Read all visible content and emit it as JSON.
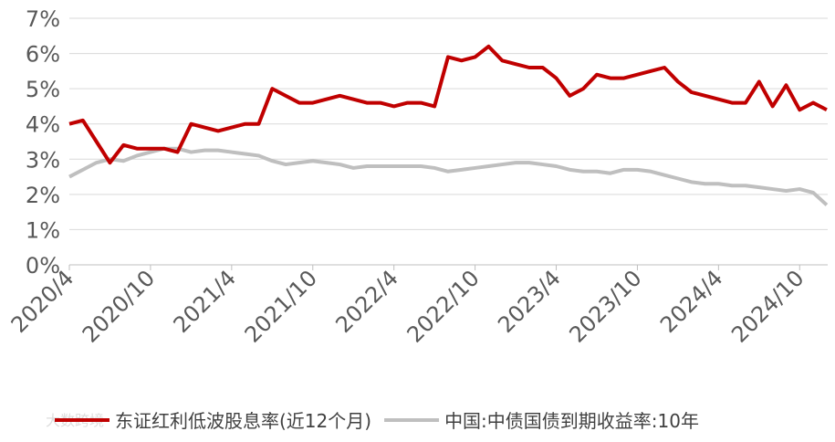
{
  "chart_data": {
    "type": "line",
    "x": [
      "2020/4",
      "2020/5",
      "2020/6",
      "2020/7",
      "2020/8",
      "2020/9",
      "2020/10",
      "2020/11",
      "2020/12",
      "2021/1",
      "2021/2",
      "2021/3",
      "2021/4",
      "2021/5",
      "2021/6",
      "2021/7",
      "2021/8",
      "2021/9",
      "2021/10",
      "2021/11",
      "2021/12",
      "2022/1",
      "2022/2",
      "2022/3",
      "2022/4",
      "2022/5",
      "2022/6",
      "2022/7",
      "2022/8",
      "2022/9",
      "2022/10",
      "2022/11",
      "2022/12",
      "2023/1",
      "2023/2",
      "2023/3",
      "2023/4",
      "2023/5",
      "2023/6",
      "2023/7",
      "2023/8",
      "2023/9",
      "2023/10",
      "2023/11",
      "2023/12",
      "2024/1",
      "2024/2",
      "2024/3",
      "2024/4",
      "2024/5",
      "2024/6",
      "2024/7",
      "2024/8",
      "2024/9",
      "2024/10",
      "2024/11",
      "2024/12"
    ],
    "xticks": [
      "2020/4",
      "2020/10",
      "2021/4",
      "2021/10",
      "2022/4",
      "2022/10",
      "2023/4",
      "2023/10",
      "2024/4",
      "2024/10"
    ],
    "series": [
      {
        "name": "东证红利低波股息率(近12个月)",
        "color": "#c00000",
        "values": [
          4.0,
          4.1,
          3.5,
          2.9,
          3.4,
          3.3,
          3.3,
          3.3,
          3.2,
          4.0,
          3.9,
          3.8,
          3.9,
          4.0,
          4.0,
          5.0,
          4.8,
          4.6,
          4.6,
          4.7,
          4.8,
          4.7,
          4.6,
          4.6,
          4.5,
          4.6,
          4.6,
          4.5,
          5.9,
          5.8,
          5.9,
          6.2,
          5.8,
          5.7,
          5.6,
          5.6,
          5.3,
          4.8,
          5.0,
          5.4,
          5.3,
          5.3,
          5.4,
          5.5,
          5.6,
          5.2,
          4.9,
          4.8,
          4.7,
          4.6,
          4.6,
          5.2,
          4.5,
          5.1,
          4.4,
          4.6,
          4.4
        ]
      },
      {
        "name": "中国:中债国债到期收益率:10年",
        "color": "#bfbfbf",
        "values": [
          2.5,
          2.7,
          2.9,
          3.0,
          2.95,
          3.1,
          3.2,
          3.3,
          3.3,
          3.2,
          3.25,
          3.25,
          3.2,
          3.15,
          3.1,
          2.95,
          2.85,
          2.9,
          2.95,
          2.9,
          2.85,
          2.75,
          2.8,
          2.8,
          2.8,
          2.8,
          2.8,
          2.75,
          2.65,
          2.7,
          2.75,
          2.8,
          2.85,
          2.9,
          2.9,
          2.85,
          2.8,
          2.7,
          2.65,
          2.65,
          2.6,
          2.7,
          2.7,
          2.65,
          2.55,
          2.45,
          2.35,
          2.3,
          2.3,
          2.25,
          2.25,
          2.2,
          2.15,
          2.1,
          2.15,
          2.05,
          1.7
        ]
      }
    ],
    "ylim": [
      0,
      7
    ],
    "yticks": [
      {
        "value": 0,
        "label": "0%"
      },
      {
        "value": 1,
        "label": "1%"
      },
      {
        "value": 2,
        "label": "2%"
      },
      {
        "value": 3,
        "label": "3%"
      },
      {
        "value": 4,
        "label": "4%"
      },
      {
        "value": 5,
        "label": "5%"
      },
      {
        "value": 6,
        "label": "6%"
      },
      {
        "value": 7,
        "label": "7%"
      }
    ],
    "grid": true,
    "legend": "bottom",
    "watermark": "大数跨境"
  }
}
